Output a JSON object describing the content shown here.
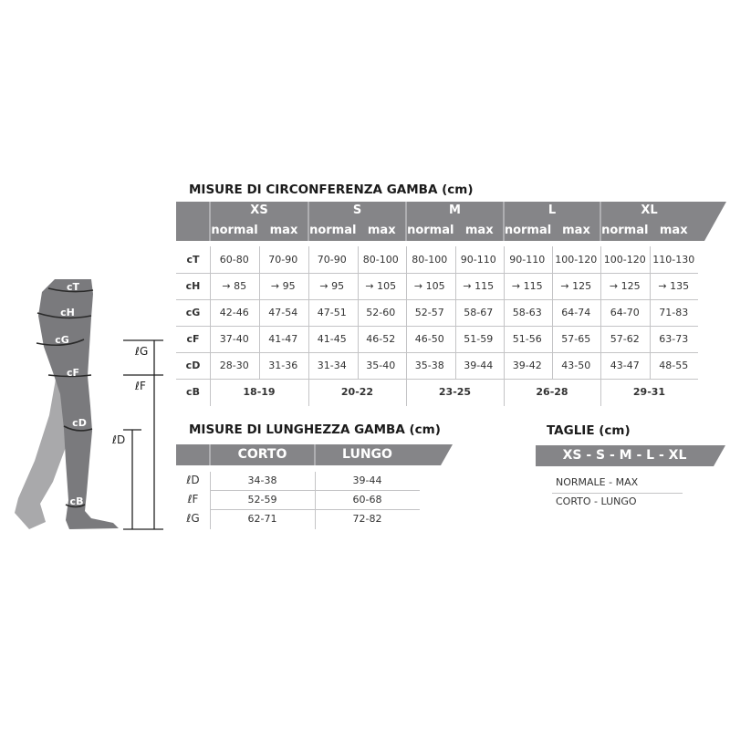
{
  "circumference": {
    "title": "MISURE DI CIRCONFERENZA GAMBA (cm)",
    "sizes": [
      "XS",
      "S",
      "M",
      "L",
      "XL"
    ],
    "sub_labels": [
      "normal",
      "max"
    ],
    "rows": [
      {
        "label": "cT",
        "values": [
          "60-80",
          "70-90",
          "70-90",
          "80-100",
          "80-100",
          "90-110",
          "90-110",
          "100-120",
          "100-120",
          "110-130"
        ]
      },
      {
        "label": "cH",
        "values": [
          "→ 85",
          "→ 95",
          "→ 95",
          "→ 105",
          "→ 105",
          "→ 115",
          "→ 115",
          "→ 125",
          "→ 125",
          "→ 135"
        ]
      },
      {
        "label": "cG",
        "values": [
          "42-46",
          "47-54",
          "47-51",
          "52-60",
          "52-57",
          "58-67",
          "58-63",
          "64-74",
          "64-70",
          "71-83"
        ]
      },
      {
        "label": "cF",
        "values": [
          "37-40",
          "41-47",
          "41-45",
          "46-52",
          "46-50",
          "51-59",
          "51-56",
          "57-65",
          "57-62",
          "63-73"
        ]
      },
      {
        "label": "cD",
        "values": [
          "28-30",
          "31-36",
          "31-34",
          "35-40",
          "35-38",
          "39-44",
          "39-42",
          "43-50",
          "43-47",
          "48-55"
        ]
      }
    ],
    "cb_row": {
      "label": "cB",
      "values": [
        "18-19",
        "20-22",
        "23-25",
        "26-28",
        "29-31"
      ]
    }
  },
  "length": {
    "title": "MISURE DI LUNGHEZZA GAMBA (cm)",
    "columns": [
      "CORTO",
      "LUNGO"
    ],
    "rows": [
      {
        "label": "ℓD",
        "values": [
          "34-38",
          "39-44"
        ]
      },
      {
        "label": "ℓF",
        "values": [
          "52-59",
          "60-68"
        ]
      },
      {
        "label": "ℓG",
        "values": [
          "62-71",
          "72-82"
        ]
      }
    ]
  },
  "sizes_legend": {
    "title": "TAGLIE (cm)",
    "band": "XS - S - M - L - XL",
    "lines": [
      "NORMALE - MAX",
      "CORTO - LUNGO"
    ]
  },
  "figure": {
    "bands": [
      "cT",
      "cH",
      "cG",
      "cF",
      "cD",
      "cB"
    ],
    "lengths": [
      "ℓG",
      "ℓF",
      "ℓD"
    ]
  },
  "colors": {
    "header_gray": "#858588",
    "leg_front": "#7a7a7d",
    "leg_back": "#a9a9ab"
  }
}
